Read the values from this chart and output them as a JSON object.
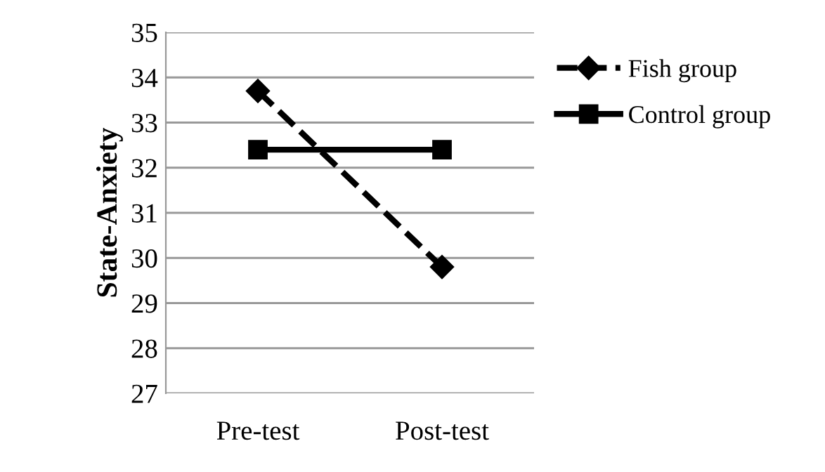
{
  "chart_data": {
    "type": "line",
    "ylabel": "State-Anxiety",
    "categories": [
      "Pre-test",
      "Post-test"
    ],
    "series": [
      {
        "name": "Fish group",
        "color": "#000000",
        "values": [
          33.7,
          29.8
        ],
        "marker": "diamond",
        "line_style": "dashed"
      },
      {
        "name": "Control group",
        "color": "#000000",
        "values": [
          32.4,
          32.4
        ],
        "marker": "square",
        "line_style": "solid"
      }
    ],
    "ylim": [
      27,
      35
    ],
    "yticks": [
      27,
      28,
      29,
      30,
      31,
      32,
      33,
      34,
      35
    ],
    "grid": "y",
    "legend": "right"
  }
}
